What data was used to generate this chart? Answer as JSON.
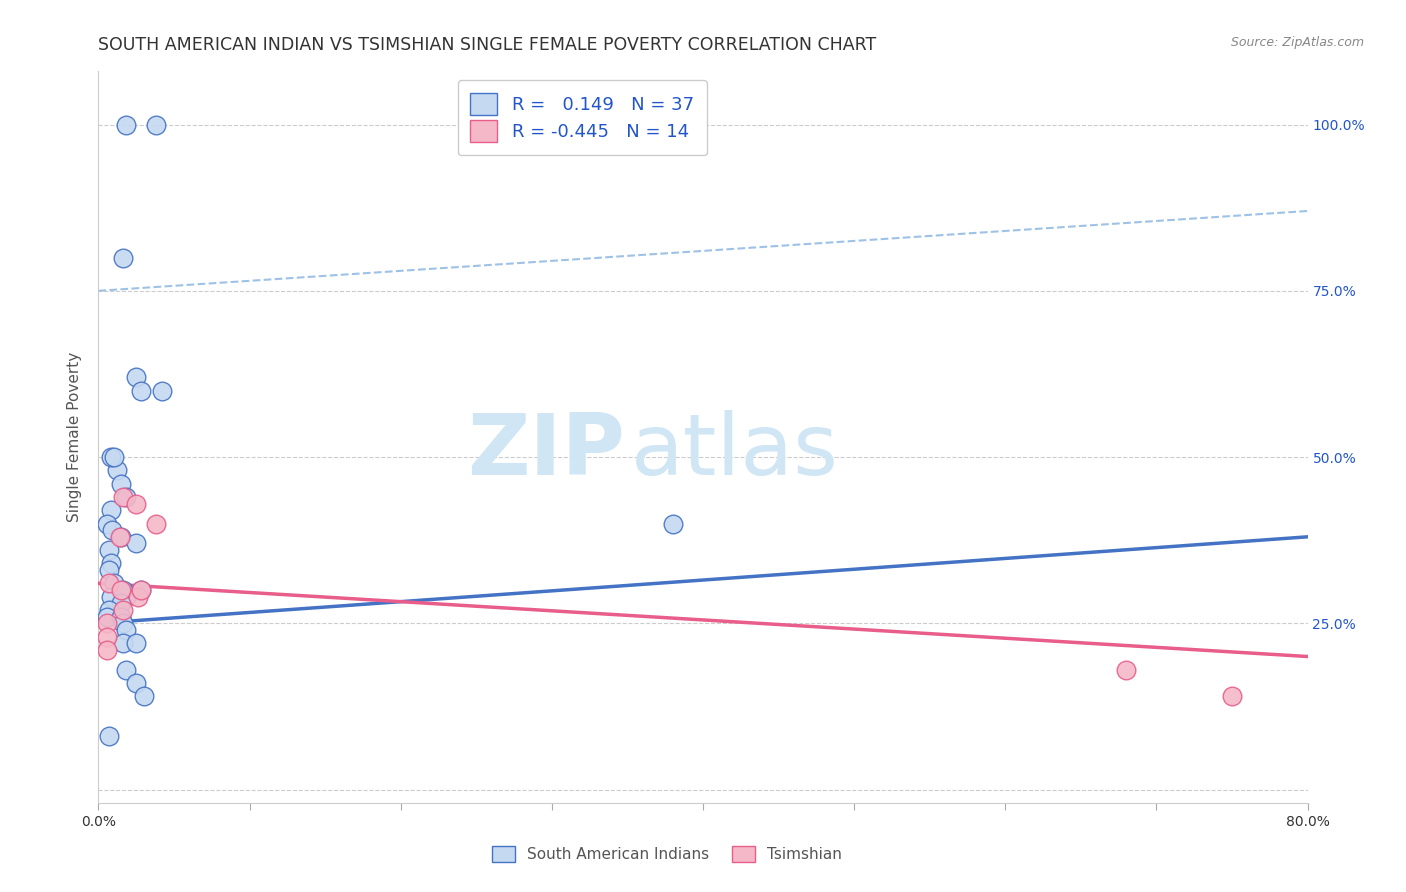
{
  "title": "SOUTH AMERICAN INDIAN VS TSIMSHIAN SINGLE FEMALE POVERTY CORRELATION CHART",
  "source": "Source: ZipAtlas.com",
  "ylabel": "Single Female Poverty",
  "xlim": [
    0.0,
    0.8
  ],
  "ylim": [
    -0.02,
    1.08
  ],
  "xtick_positions": [
    0.0,
    0.1,
    0.2,
    0.3,
    0.4,
    0.5,
    0.6,
    0.7,
    0.8
  ],
  "xticklabels": [
    "0.0%",
    "",
    "",
    "",
    "",
    "",
    "",
    "",
    "80.0%"
  ],
  "ytick_positions": [
    0.0,
    0.25,
    0.5,
    0.75,
    1.0
  ],
  "yticklabels_right": [
    "",
    "25.0%",
    "50.0%",
    "75.0%",
    "100.0%"
  ],
  "blue_R": 0.149,
  "blue_N": 37,
  "pink_R": -0.445,
  "pink_N": 14,
  "blue_fill_color": "#c5d9f1",
  "blue_edge_color": "#4472c4",
  "blue_line_color": "#4472c4",
  "blue_dash_color": "#9ec2e6",
  "pink_fill_color": "#f4b8c8",
  "pink_edge_color": "#e85d8a",
  "pink_line_color": "#e85d8a",
  "legend_text_color": "#2255cc",
  "right_axis_color": "#2255cc",
  "bg_color": "#ffffff",
  "grid_color": "#cccccc",
  "title_color": "#333333",
  "source_color": "#888888",
  "ylabel_color": "#555555",
  "watermark_color": "#d0e6f5",
  "blue_scatter_x": [
    0.018,
    0.038,
    0.016,
    0.025,
    0.028,
    0.042,
    0.012,
    0.008,
    0.01,
    0.015,
    0.018,
    0.008,
    0.006,
    0.009,
    0.015,
    0.025,
    0.007,
    0.008,
    0.007,
    0.01,
    0.008,
    0.018,
    0.016,
    0.028,
    0.015,
    0.007,
    0.006,
    0.015,
    0.016,
    0.018,
    0.016,
    0.025,
    0.38,
    0.018,
    0.025,
    0.03,
    0.007
  ],
  "blue_scatter_y": [
    1.0,
    1.0,
    0.8,
    0.62,
    0.6,
    0.6,
    0.48,
    0.5,
    0.5,
    0.46,
    0.44,
    0.42,
    0.4,
    0.39,
    0.38,
    0.37,
    0.36,
    0.34,
    0.33,
    0.31,
    0.29,
    0.29,
    0.3,
    0.3,
    0.28,
    0.27,
    0.26,
    0.26,
    0.25,
    0.24,
    0.22,
    0.22,
    0.4,
    0.18,
    0.16,
    0.14,
    0.08
  ],
  "pink_scatter_x": [
    0.016,
    0.025,
    0.014,
    0.007,
    0.015,
    0.026,
    0.038,
    0.028,
    0.016,
    0.006,
    0.006,
    0.006,
    0.68,
    0.75
  ],
  "pink_scatter_y": [
    0.44,
    0.43,
    0.38,
    0.31,
    0.3,
    0.29,
    0.4,
    0.3,
    0.27,
    0.25,
    0.23,
    0.21,
    0.18,
    0.14
  ],
  "blue_trendline": {
    "x": [
      0.0,
      0.8
    ],
    "y": [
      0.25,
      0.38
    ]
  },
  "blue_dash": {
    "x": [
      0.0,
      0.8
    ],
    "y": [
      0.75,
      0.87
    ]
  },
  "pink_trendline": {
    "x": [
      0.0,
      0.8
    ],
    "y": [
      0.31,
      0.2
    ]
  },
  "legend_box_blue": "#c5d9f1",
  "legend_box_pink": "#f4b8c8",
  "title_fontsize": 12.5,
  "tick_fontsize": 10,
  "legend_fontsize": 13,
  "ylabel_fontsize": 11
}
